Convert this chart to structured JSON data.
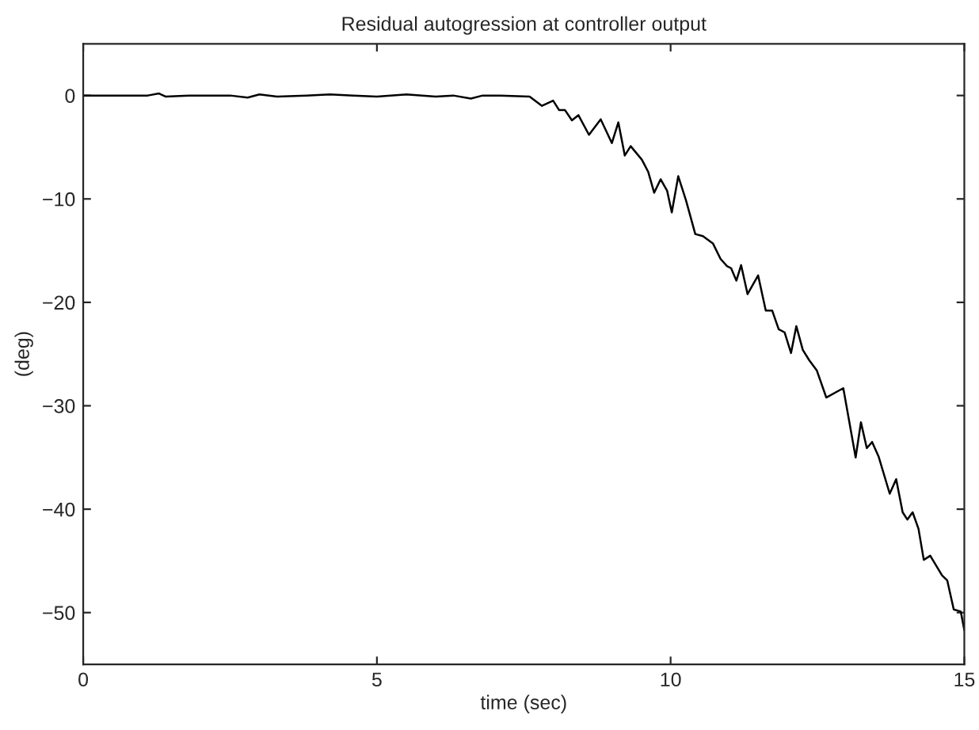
{
  "chart_data": {
    "type": "line",
    "title": "Residual autogression at controller output",
    "xlabel": "time (sec)",
    "ylabel": "(deg)",
    "xlim": [
      0,
      15
    ],
    "ylim": [
      -55,
      5
    ],
    "xticks": [
      0,
      5,
      10,
      15
    ],
    "yticks": [
      {
        "value": -50,
        "label": "−50"
      },
      {
        "value": -40,
        "label": "−40"
      },
      {
        "value": -30,
        "label": "−30"
      },
      {
        "value": -20,
        "label": "−20"
      },
      {
        "value": -10,
        "label": "−10"
      },
      0
    ],
    "grid": false,
    "legend": false,
    "series": [
      {
        "color": "#000000",
        "x": [
          0,
          1.1,
          1.29,
          1.4,
          1.8,
          2.5,
          2.8,
          3.0,
          3.3,
          3.8,
          4.2,
          4.6,
          5.0,
          5.5,
          6.0,
          6.3,
          6.6,
          6.8,
          7.1,
          7.6,
          7.81,
          8.0,
          8.1,
          8.2,
          8.32,
          8.43,
          8.61,
          8.81,
          9.0,
          9.11,
          9.22,
          9.32,
          9.51,
          9.62,
          9.72,
          9.83,
          9.94,
          10.02,
          10.13,
          10.26,
          10.42,
          10.55,
          10.72,
          10.85,
          10.96,
          11.03,
          11.12,
          11.2,
          11.31,
          11.49,
          11.62,
          11.73,
          11.84,
          11.94,
          12.05,
          12.14,
          12.25,
          12.36,
          12.49,
          12.65,
          12.94,
          13.15,
          13.24,
          13.34,
          13.43,
          13.54,
          13.73,
          13.84,
          13.95,
          14.03,
          14.12,
          14.22,
          14.31,
          14.42,
          14.62,
          14.71,
          14.82,
          14.94,
          15.0
        ],
        "values": [
          0,
          0,
          0.2,
          -0.1,
          0,
          0,
          -0.2,
          0.1,
          -0.1,
          0,
          0.1,
          0,
          -0.1,
          0.1,
          -0.1,
          0,
          -0.3,
          0,
          0,
          -0.1,
          -1.0,
          -0.5,
          -1.4,
          -1.4,
          -2.4,
          -1.9,
          -3.8,
          -2.3,
          -4.6,
          -2.6,
          -5.8,
          -4.9,
          -6.2,
          -7.4,
          -9.4,
          -8.1,
          -9.2,
          -11.3,
          -7.8,
          -10.1,
          -13.4,
          -13.6,
          -14.3,
          -15.8,
          -16.5,
          -16.7,
          -17.9,
          -16.4,
          -19.2,
          -17.4,
          -20.8,
          -20.8,
          -22.6,
          -22.9,
          -24.9,
          -22.3,
          -24.6,
          -25.6,
          -26.6,
          -29.2,
          -28.3,
          -35.0,
          -31.6,
          -34.1,
          -33.5,
          -34.9,
          -38.5,
          -37.1,
          -40.3,
          -41.0,
          -40.3,
          -41.9,
          -44.9,
          -44.5,
          -46.4,
          -46.9,
          -49.7,
          -49.9,
          -51.7
        ]
      }
    ]
  }
}
